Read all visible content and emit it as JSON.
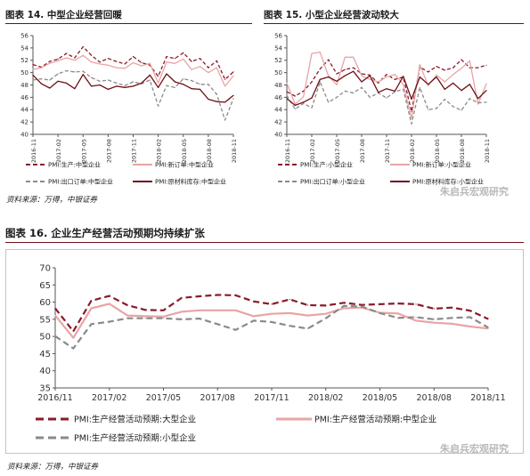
{
  "chart_data": [
    {
      "type": "line",
      "title": "图表 14. 中型企业经营回暖",
      "x": [
        "2016-11",
        "2016-12",
        "2017-01",
        "2017-02",
        "2017-03",
        "2017-04",
        "2017-05",
        "2017-06",
        "2017-07",
        "2017-08",
        "2017-09",
        "2017-10",
        "2017-11",
        "2017-12",
        "2018-01",
        "2018-02",
        "2018-03",
        "2018-04",
        "2018-05",
        "2018-06",
        "2018-07",
        "2018-08",
        "2018-09",
        "2018-10",
        "2018-11"
      ],
      "x_tick_labels": [
        "2016-11",
        "2017-02",
        "2017-05",
        "2017-08",
        "2017-11",
        "2018-02",
        "2018-05",
        "2018-08",
        "2018-11"
      ],
      "ylim": [
        40,
        56
      ],
      "y_ticks": [
        40,
        42,
        44,
        46,
        48,
        50,
        52,
        54,
        56
      ],
      "grid": false,
      "legend_position": "bottom",
      "series": [
        {
          "name": "PMI:生产:中型企业",
          "color": "#8b1a2b",
          "dash": "dash",
          "values": [
            51.3,
            50.9,
            51.8,
            52.2,
            53.1,
            52.4,
            54.2,
            52.8,
            51.7,
            52.3,
            51.8,
            51.4,
            52.6,
            51.6,
            51.2,
            49.4,
            52.6,
            52.3,
            53.2,
            51.8,
            52.3,
            50.8,
            51.9,
            48.9,
            50.1
          ]
        },
        {
          "name": "PMI:新订单:中型企业",
          "color": "#e8a5a5",
          "dash": "solid",
          "values": [
            50.5,
            50.8,
            51.5,
            51.9,
            52.4,
            52.0,
            52.8,
            51.7,
            51.4,
            51.2,
            50.8,
            50.7,
            51.6,
            51.1,
            51.5,
            48.3,
            51.7,
            51.5,
            52.2,
            50.5,
            51.0,
            50.0,
            50.8,
            47.8,
            49.5
          ]
        },
        {
          "name": "PMI:出口订单:中型企业",
          "color": "#8a8a8a",
          "dash": "dash",
          "values": [
            48.8,
            49.0,
            48.8,
            49.8,
            50.3,
            50.1,
            50.2,
            49.2,
            48.6,
            48.8,
            48.3,
            47.9,
            48.5,
            48.2,
            48.8,
            44.6,
            47.9,
            47.6,
            49.0,
            48.7,
            48.1,
            48.1,
            46.5,
            42.3,
            45.8
          ]
        },
        {
          "name": "PMI:原材料库存:中型企业",
          "color": "#6e0f16",
          "dash": "solid",
          "values": [
            49.6,
            48.2,
            47.5,
            48.6,
            48.3,
            47.4,
            49.7,
            47.8,
            48.0,
            47.3,
            47.8,
            47.6,
            47.8,
            48.3,
            49.6,
            47.6,
            49.8,
            48.5,
            48.1,
            47.4,
            47.3,
            45.7,
            45.3,
            45.2,
            46.3
          ]
        }
      ]
    },
    {
      "type": "line",
      "title": "图表 15. 小型企业经营波动较大",
      "x": [
        "2016-11",
        "2016-12",
        "2017-01",
        "2017-02",
        "2017-03",
        "2017-04",
        "2017-05",
        "2017-06",
        "2017-07",
        "2017-08",
        "2017-09",
        "2017-10",
        "2017-11",
        "2017-12",
        "2018-01",
        "2018-02",
        "2018-03",
        "2018-04",
        "2018-05",
        "2018-06",
        "2018-07",
        "2018-08",
        "2018-09",
        "2018-10",
        "2018-11"
      ],
      "x_tick_labels": [
        "2016-11",
        "2017-02",
        "2017-05",
        "2017-08",
        "2017-11",
        "2018-02",
        "2018-05",
        "2018-08",
        "2018-11"
      ],
      "ylim": [
        40,
        56
      ],
      "y_ticks": [
        40,
        42,
        44,
        46,
        48,
        50,
        52,
        54,
        56
      ],
      "grid": false,
      "legend_position": "bottom",
      "series": [
        {
          "name": "PMI:生产:小型企业",
          "color": "#8b1a2b",
          "dash": "dash",
          "values": [
            46.9,
            46.2,
            47.0,
            48.5,
            50.6,
            52.1,
            49.8,
            50.5,
            50.8,
            49.8,
            49.6,
            48.3,
            49.7,
            48.9,
            49.3,
            43.7,
            50.9,
            50.1,
            51.0,
            50.4,
            50.8,
            52.1,
            50.8,
            50.8,
            51.2
          ]
        },
        {
          "name": "PMI:新订单:小型企业",
          "color": "#e8a5a5",
          "dash": "solid",
          "values": [
            48.3,
            44.9,
            46.1,
            53.1,
            53.3,
            49.5,
            48.0,
            52.5,
            52.5,
            49.5,
            48.9,
            48.5,
            49.3,
            49.7,
            48.1,
            42.6,
            51.3,
            47.9,
            49.6,
            48.5,
            49.7,
            50.7,
            51.9,
            44.9,
            48.2
          ]
        },
        {
          "name": "PMI:出口订单:小型企业",
          "color": "#8a8a8a",
          "dash": "dash",
          "values": [
            46.3,
            44.1,
            45.0,
            44.3,
            48.5,
            45.2,
            46.0,
            47.0,
            46.7,
            47.6,
            46.0,
            46.7,
            45.9,
            46.9,
            47.3,
            41.7,
            47.6,
            44.0,
            44.2,
            45.7,
            44.5,
            43.9,
            45.8,
            45.1,
            45.2
          ]
        },
        {
          "name": "PMI:原材料库存:小型企业",
          "color": "#6e0f16",
          "dash": "solid",
          "values": [
            45.8,
            44.7,
            45.2,
            45.9,
            48.9,
            49.3,
            48.6,
            49.5,
            50.2,
            48.5,
            49.5,
            46.8,
            47.4,
            47.0,
            49.4,
            45.7,
            49.3,
            48.1,
            49.3,
            47.3,
            48.3,
            47.1,
            48.1,
            45.8,
            47.1
          ]
        }
      ]
    },
    {
      "type": "line",
      "title": "图表 16. 企业生产经营活动预期均持续扩张",
      "x": [
        "2016-11",
        "2016-12",
        "2017-01",
        "2017-02",
        "2017-03",
        "2017-04",
        "2017-05",
        "2017-06",
        "2017-07",
        "2017-08",
        "2017-09",
        "2017-10",
        "2017-11",
        "2017-12",
        "2018-01",
        "2018-02",
        "2018-03",
        "2018-04",
        "2018-05",
        "2018-06",
        "2018-07",
        "2018-08",
        "2018-09",
        "2018-10",
        "2018-11"
      ],
      "x_tick_labels": [
        "2016/11",
        "2017/02",
        "2017/05",
        "2017/08",
        "2017/11",
        "2018/02",
        "2018/05",
        "2018/08",
        "2018/11"
      ],
      "ylim": [
        35,
        70
      ],
      "y_ticks": [
        35,
        40,
        45,
        50,
        55,
        60,
        65,
        70
      ],
      "grid": false,
      "legend_position": "bottom",
      "series": [
        {
          "name": "PMI:生产经营活动预期:大型企业",
          "color": "#8b1a2b",
          "dash": "dash",
          "values": [
            58.2,
            51.5,
            60.4,
            61.8,
            59.1,
            57.7,
            57.6,
            61.2,
            61.7,
            62.1,
            62.0,
            60.2,
            59.4,
            60.8,
            59.1,
            59.0,
            59.8,
            59.2,
            59.4,
            59.6,
            59.4,
            58.1,
            58.4,
            57.5,
            55.1
          ]
        },
        {
          "name": "PMI:生产经营活动预期:中型企业",
          "color": "#e8a5a5",
          "dash": "solid",
          "values": [
            56.1,
            49.6,
            58.2,
            59.5,
            56.1,
            55.9,
            55.8,
            57.2,
            57.6,
            57.6,
            57.6,
            55.9,
            56.6,
            56.8,
            56.1,
            56.6,
            58.2,
            58.4,
            56.9,
            56.7,
            54.6,
            54.0,
            53.7,
            52.9,
            52.3
          ]
        },
        {
          "name": "PMI:生产经营活动预期:小型企业",
          "color": "#8a8a8a",
          "dash": "dash",
          "values": [
            50.1,
            46.5,
            53.6,
            54.3,
            55.3,
            55.3,
            55.3,
            55.0,
            55.2,
            53.6,
            51.9,
            54.6,
            54.2,
            53.1,
            52.3,
            55.3,
            58.9,
            58.7,
            56.8,
            55.4,
            55.6,
            55.0,
            55.4,
            55.6,
            52.6
          ]
        }
      ]
    }
  ],
  "charts": [
    {
      "title": "图表 14. 中型企业经营回暖",
      "y_tick_labels": [
        "40",
        "42",
        "44",
        "46",
        "48",
        "50",
        "52",
        "54",
        "56"
      ],
      "x_tick_labels": [
        "2016-11",
        "2017-02",
        "2017-05",
        "2017-08",
        "2017-11",
        "2018-02",
        "2018-05",
        "2018-08",
        "2018-11"
      ],
      "legend": [
        "PMI:生产:中型企业",
        "PMI:新订单:中型企业",
        "PMI:出口订单:中型企业",
        "PMI:原材料库存:中型企业"
      ],
      "source": "资料来源：万得，中银证券"
    },
    {
      "title": "图表 15. 小型企业经营波动较大",
      "y_tick_labels": [
        "40",
        "42",
        "44",
        "46",
        "48",
        "50",
        "52",
        "54",
        "56"
      ],
      "x_tick_labels": [
        "2016-11",
        "2017-02",
        "2017-05",
        "2017-08",
        "2017-11",
        "2018-02",
        "2018-05",
        "2018-08",
        "2018-11"
      ],
      "legend": [
        "PMI:生产:小型企业",
        "PMI:新订单:小型企业",
        "PMI:出口订单:小型企业",
        "PMI:原材料库存:小型企业"
      ],
      "watermark": "朱启兵宏观研究"
    },
    {
      "title": "图表 16. 企业生产经营活动预期均持续扩张",
      "y_tick_labels": [
        "35",
        "40",
        "45",
        "50",
        "55",
        "60",
        "65",
        "70"
      ],
      "x_tick_labels": [
        "2016/11",
        "2017/02",
        "2017/05",
        "2017/08",
        "2017/11",
        "2018/02",
        "2018/05",
        "2018/08",
        "2018/11"
      ],
      "legend": [
        "PMI:生产经营活动预期:大型企业",
        "PMI:生产经营活动预期:中型企业",
        "PMI:生产经营活动预期:小型企业"
      ],
      "source": "资料来源：万得，中银证券",
      "watermark": "朱启兵宏观研究"
    }
  ],
  "colors": {
    "accent": "#6e0f16",
    "frame": "#c4c4c4",
    "axis": "#555555"
  }
}
